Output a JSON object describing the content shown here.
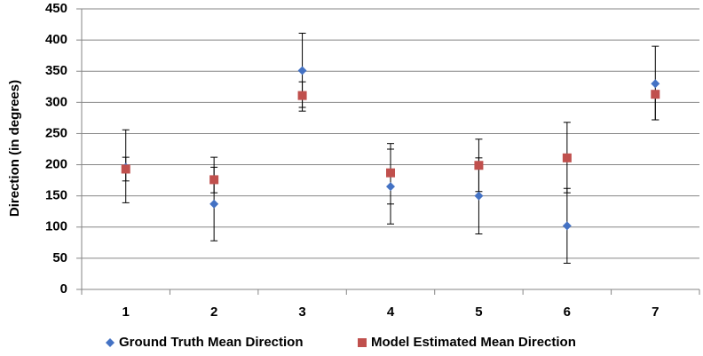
{
  "chart_data": {
    "type": "scatter",
    "ylabel": "Direction (in degrees)",
    "ylim": [
      0,
      450
    ],
    "yticks": [
      0,
      50,
      100,
      150,
      200,
      250,
      300,
      350,
      400,
      450
    ],
    "categories": [
      "1",
      "2",
      "3",
      "4",
      "5",
      "6",
      "7"
    ],
    "grid": "horizontal",
    "legend_position": "bottom",
    "series": [
      {
        "name": "Ground Truth Mean Direction",
        "marker": "diamond",
        "color": "#4472C4",
        "values": [
          196,
          137,
          351,
          165,
          150,
          102,
          330
        ],
        "error_low": [
          139,
          78,
          292,
          105,
          89,
          42,
          272
        ],
        "error_high": [
          256,
          196,
          411,
          225,
          211,
          162,
          390
        ]
      },
      {
        "name": "Model Estimated Mean Direction",
        "marker": "square",
        "color": "#C0504D",
        "values": [
          193,
          176,
          311,
          187,
          199,
          211,
          313
        ],
        "error_low": [
          174,
          155,
          286,
          137,
          157,
          155,
          272
        ],
        "error_high": [
          212,
          212,
          333,
          234,
          241,
          268,
          313
        ]
      }
    ]
  }
}
